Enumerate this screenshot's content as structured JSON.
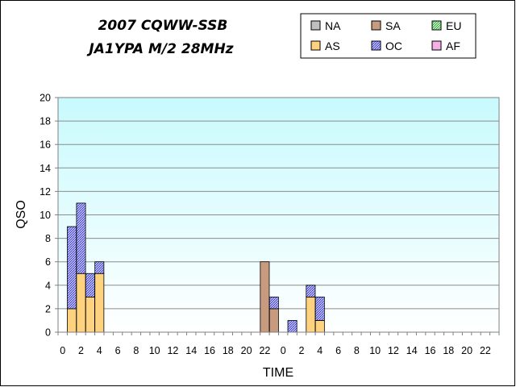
{
  "chart_data": {
    "type": "bar",
    "stacked": true,
    "title_line1": "2007 CQWW-SSB",
    "title_line2": "JA1YPA  M/2  28MHz",
    "xlabel": "TIME",
    "ylabel": "QSO",
    "ylim": [
      0,
      20
    ],
    "yticks": [
      "0",
      "2",
      "4",
      "6",
      "8",
      "10",
      "12",
      "14",
      "16",
      "18",
      "20"
    ],
    "x_hours": [
      "0",
      "1",
      "2",
      "3",
      "4",
      "5",
      "6",
      "7",
      "8",
      "9",
      "10",
      "11",
      "12",
      "13",
      "14",
      "15",
      "16",
      "17",
      "18",
      "19",
      "20",
      "21",
      "22",
      "23",
      "0",
      "1",
      "2",
      "3",
      "4",
      "5",
      "6",
      "7",
      "8",
      "9",
      "10",
      "11",
      "12",
      "13",
      "14",
      "15",
      "16",
      "17",
      "18",
      "19",
      "20",
      "21",
      "22",
      "23"
    ],
    "x_tick_labels": [
      "0",
      "2",
      "4",
      "6",
      "8",
      "10",
      "12",
      "14",
      "16",
      "18",
      "20",
      "22",
      "0",
      "2",
      "4",
      "6",
      "8",
      "10",
      "12",
      "14",
      "16",
      "18",
      "20",
      "22"
    ],
    "grid": true,
    "legend_position": "top-right",
    "series": [
      {
        "name": "NA",
        "color": "#c0c0c0",
        "values": [
          0,
          0,
          0,
          0,
          0,
          0,
          0,
          0,
          0,
          0,
          0,
          0,
          0,
          0,
          0,
          0,
          0,
          0,
          0,
          0,
          0,
          0,
          0,
          0,
          0,
          0,
          0,
          0,
          0,
          0,
          0,
          0,
          0,
          0,
          0,
          0,
          0,
          0,
          0,
          0,
          0,
          0,
          0,
          0,
          0,
          0,
          0,
          0
        ]
      },
      {
        "name": "SA",
        "color": "#c89a7e",
        "values": [
          0,
          0,
          0,
          0,
          0,
          0,
          0,
          0,
          0,
          0,
          0,
          0,
          0,
          0,
          0,
          0,
          0,
          0,
          0,
          0,
          0,
          0,
          6,
          2,
          0,
          0,
          0,
          0,
          0,
          0,
          0,
          0,
          0,
          0,
          0,
          0,
          0,
          0,
          0,
          0,
          0,
          0,
          0,
          0,
          0,
          0,
          0,
          0
        ]
      },
      {
        "name": "EU",
        "color": "#9ee8a0",
        "values": [
          0,
          0,
          0,
          0,
          0,
          0,
          0,
          0,
          0,
          0,
          0,
          0,
          0,
          0,
          0,
          0,
          0,
          0,
          0,
          0,
          0,
          0,
          0,
          0,
          0,
          0,
          0,
          0,
          0,
          0,
          0,
          0,
          0,
          0,
          0,
          0,
          0,
          0,
          0,
          0,
          0,
          0,
          0,
          0,
          0,
          0,
          0,
          0
        ]
      },
      {
        "name": "AS",
        "color": "#ffd27f",
        "values": [
          0,
          2,
          5,
          3,
          5,
          0,
          0,
          0,
          0,
          0,
          0,
          0,
          0,
          0,
          0,
          0,
          0,
          0,
          0,
          0,
          0,
          0,
          0,
          0,
          0,
          0,
          0,
          3,
          1,
          0,
          0,
          0,
          0,
          0,
          0,
          0,
          0,
          0,
          0,
          0,
          0,
          0,
          0,
          0,
          0,
          0,
          0,
          0
        ]
      },
      {
        "name": "OC",
        "color": "#a8a8f0",
        "values": [
          0,
          7,
          6,
          2,
          1,
          0,
          0,
          0,
          0,
          0,
          0,
          0,
          0,
          0,
          0,
          0,
          0,
          0,
          0,
          0,
          0,
          0,
          0,
          1,
          0,
          1,
          0,
          1,
          2,
          0,
          0,
          0,
          0,
          0,
          0,
          0,
          0,
          0,
          0,
          0,
          0,
          0,
          0,
          0,
          0,
          0,
          0,
          0
        ]
      },
      {
        "name": "AF",
        "color": "#f4b0e4",
        "values": [
          0,
          0,
          0,
          0,
          0,
          0,
          0,
          0,
          0,
          0,
          0,
          0,
          0,
          0,
          0,
          0,
          0,
          0,
          0,
          0,
          0,
          0,
          0,
          0,
          0,
          0,
          0,
          0,
          0,
          0,
          0,
          0,
          0,
          0,
          0,
          0,
          0,
          0,
          0,
          0,
          0,
          0,
          0,
          0,
          0,
          0,
          0,
          0
        ]
      }
    ]
  }
}
